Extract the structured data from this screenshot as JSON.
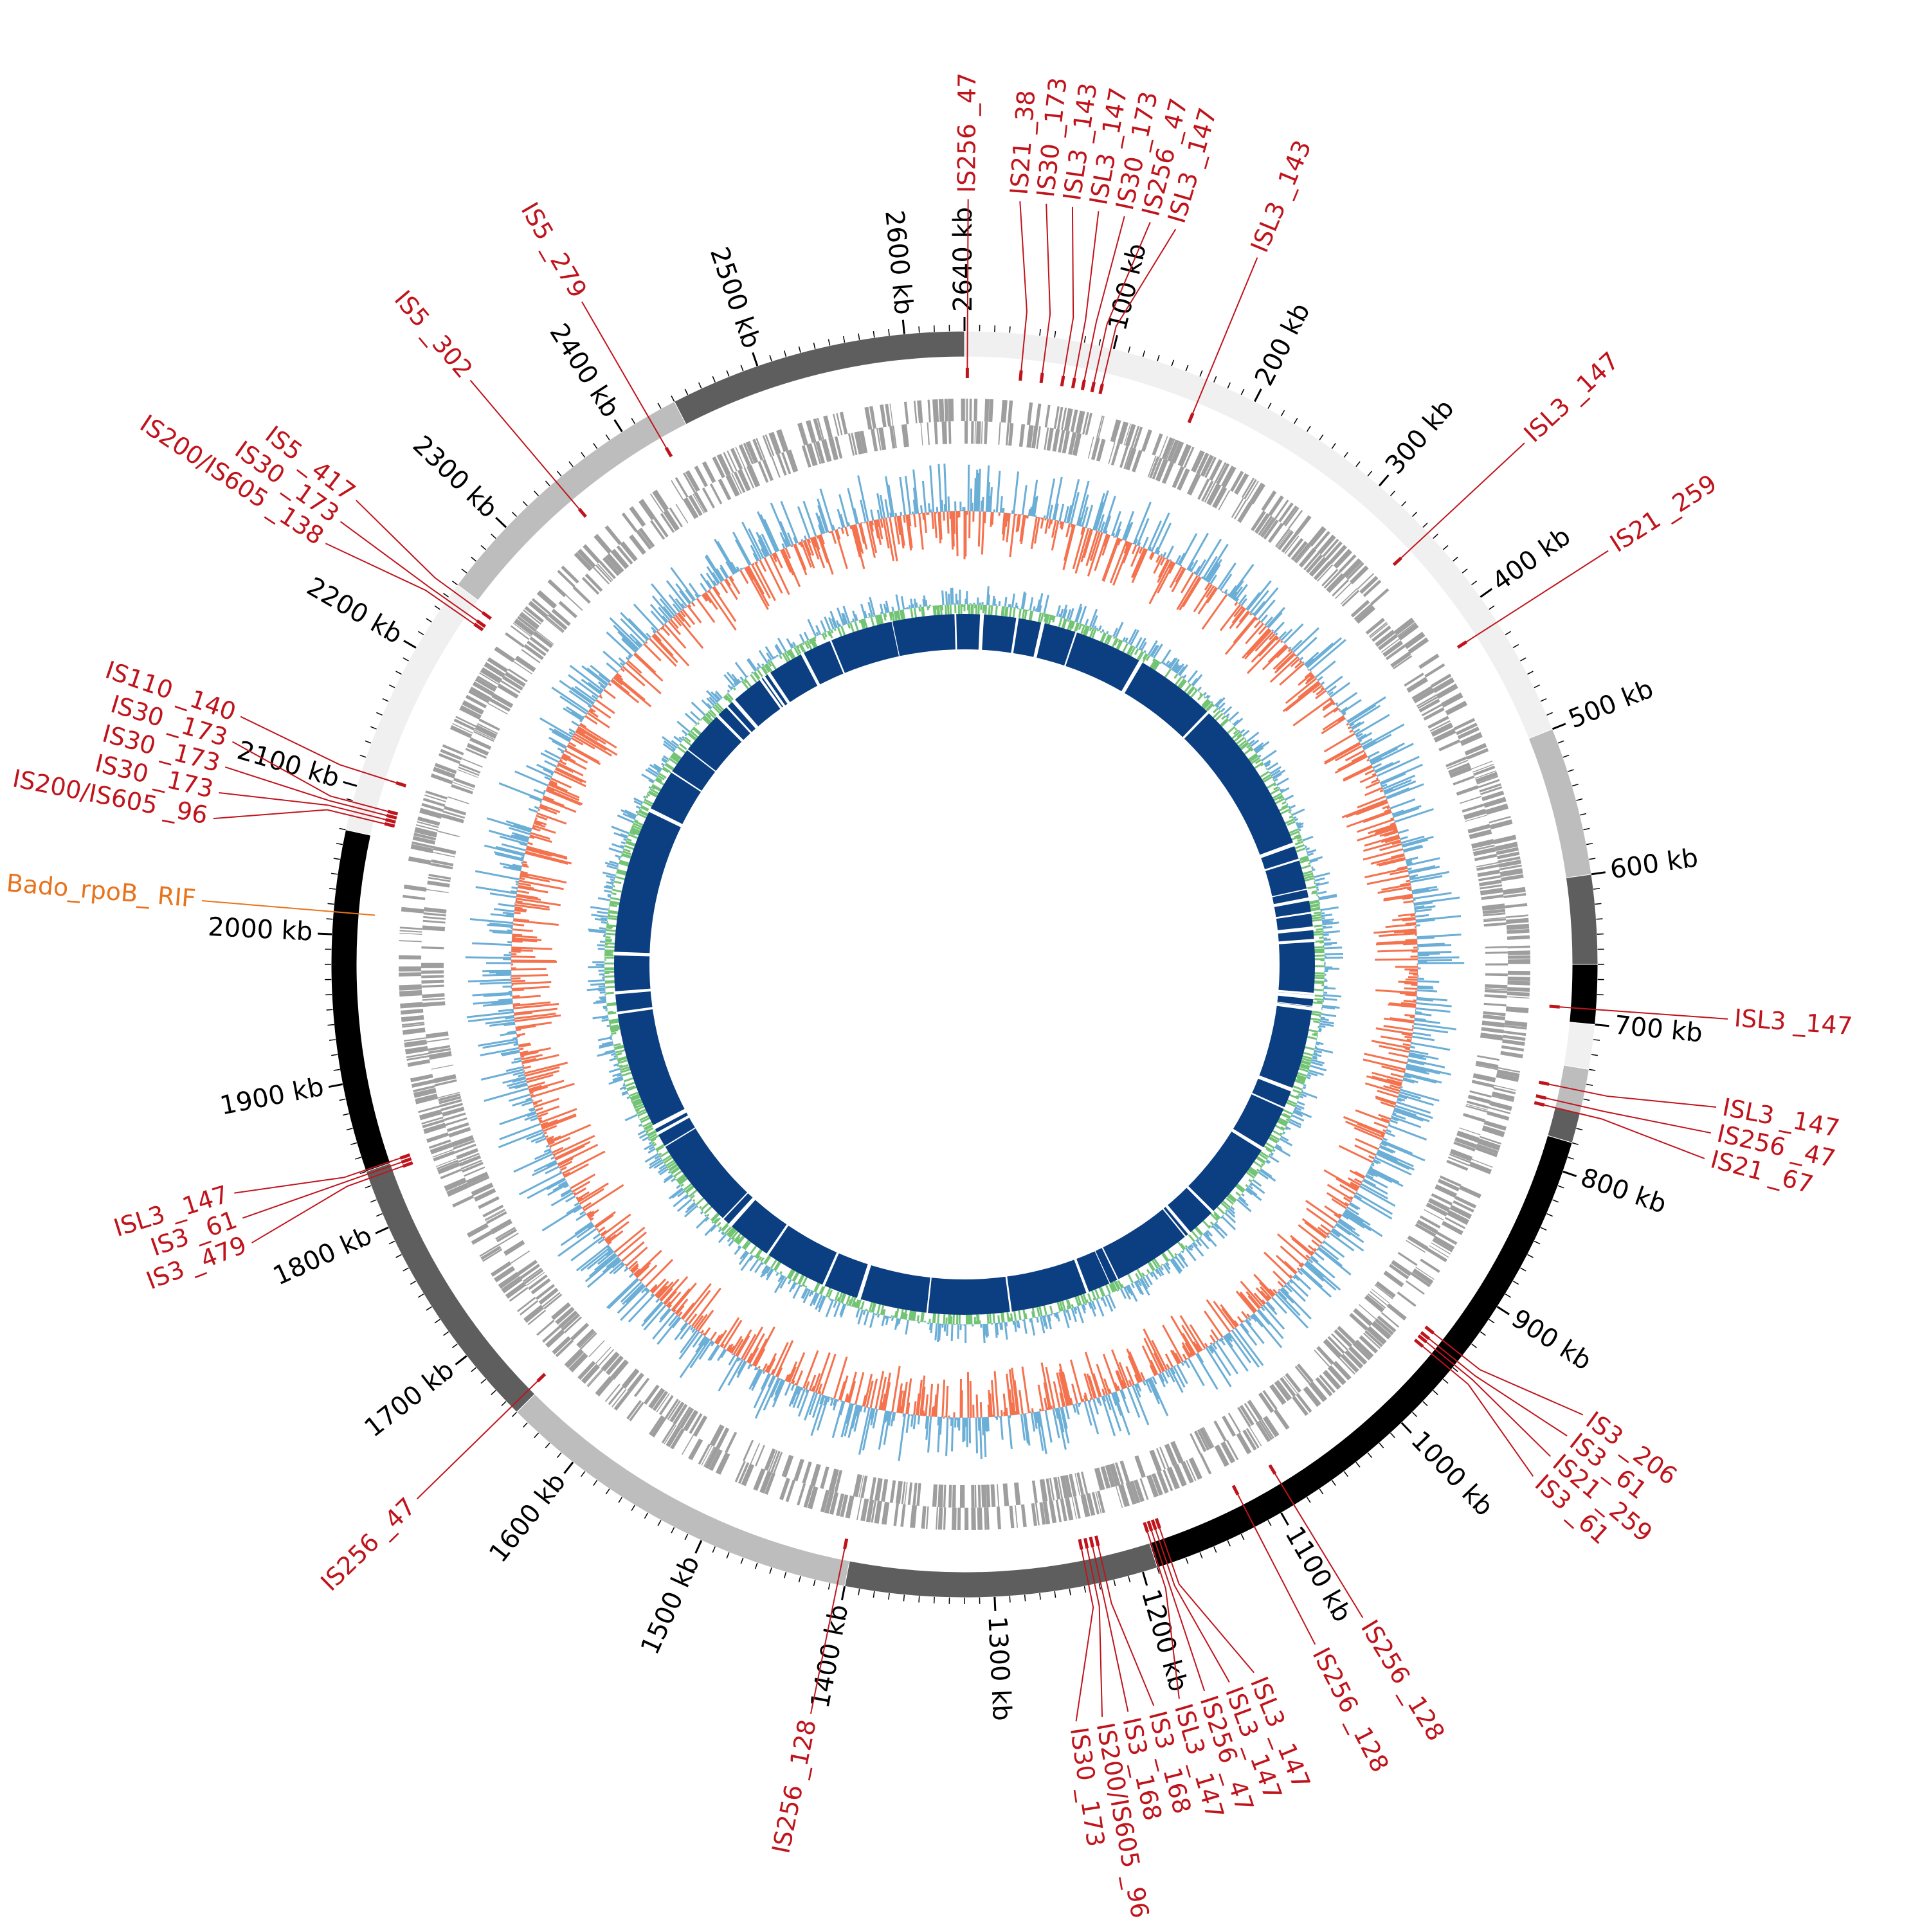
{
  "genome": {
    "length_kb": 2640,
    "tick_step_kb": 100,
    "minor_tick_step_kb": 10,
    "tick_unit": "kb"
  },
  "colors": {
    "is_element": "#c0141c",
    "marker": "#e8731c",
    "gc_content_pos": "#6baed6",
    "gc_content_neg": "#f4724e",
    "gc_skew": "#74c476",
    "coverage_track": "#0b3f82",
    "cds_track": "#9e9e9e",
    "tick": "#000000"
  },
  "segments": [
    {
      "start": 0,
      "end": 500,
      "shade": "#f0f0f0"
    },
    {
      "start": 500,
      "end": 600,
      "shade": "#bdbdbd"
    },
    {
      "start": 600,
      "end": 660,
      "shade": "#5e5e5e"
    },
    {
      "start": 660,
      "end": 700,
      "shade": "#000000"
    },
    {
      "start": 700,
      "end": 730,
      "shade": "#f0f0f0"
    },
    {
      "start": 730,
      "end": 760,
      "shade": "#bdbdbd"
    },
    {
      "start": 760,
      "end": 780,
      "shade": "#5e5e5e"
    },
    {
      "start": 780,
      "end": 1190,
      "shade": "#000000"
    },
    {
      "start": 1190,
      "end": 1400,
      "shade": "#5e5e5e"
    },
    {
      "start": 1400,
      "end": 1650,
      "shade": "#bdbdbd"
    },
    {
      "start": 1650,
      "end": 1840,
      "shade": "#5e5e5e"
    },
    {
      "start": 1840,
      "end": 2070,
      "shade": "#000000"
    },
    {
      "start": 2070,
      "end": 2250,
      "shade": "#f0f0f0"
    },
    {
      "start": 2250,
      "end": 2440,
      "shade": "#bdbdbd"
    },
    {
      "start": 2440,
      "end": 2640,
      "shade": "#5e5e5e"
    }
  ],
  "is_elements": [
    {
      "name": "IS256 _47",
      "pos": 2
    },
    {
      "name": "IS21 _38",
      "pos": 40
    },
    {
      "name": "IS30 _173",
      "pos": 55
    },
    {
      "name": "ISL3 _143",
      "pos": 70
    },
    {
      "name": "ISL3 _147",
      "pos": 78
    },
    {
      "name": "IS30 _173",
      "pos": 85
    },
    {
      "name": "IS256 _47",
      "pos": 92
    },
    {
      "name": "ISL3 _147",
      "pos": 98
    },
    {
      "name": "ISL3 _143",
      "pos": 165
    },
    {
      "name": "ISL3 _147",
      "pos": 345
    },
    {
      "name": "IS21 _259",
      "pos": 420
    },
    {
      "name": "ISL3 _147",
      "pos": 690
    },
    {
      "name": "ISL3 _147",
      "pos": 745
    },
    {
      "name": "IS256 _47",
      "pos": 755
    },
    {
      "name": "IS21 _67",
      "pos": 760
    },
    {
      "name": "IS3 _206",
      "pos": 940
    },
    {
      "name": "IS3 _61",
      "pos": 945
    },
    {
      "name": "IS21 _259",
      "pos": 948
    },
    {
      "name": "IS3 _61",
      "pos": 952
    },
    {
      "name": "IS256 _128",
      "pos": 1090
    },
    {
      "name": "IS256 _128",
      "pos": 1120
    },
    {
      "name": "ISL3 _147",
      "pos": 1180
    },
    {
      "name": "ISL3 _147",
      "pos": 1183
    },
    {
      "name": "IS256 _47",
      "pos": 1186
    },
    {
      "name": "ISL3 _147",
      "pos": 1189
    },
    {
      "name": "IS3 _168",
      "pos": 1225
    },
    {
      "name": "IS3 _168",
      "pos": 1229
    },
    {
      "name": "IS200/IS605 _96",
      "pos": 1233
    },
    {
      "name": "IS30 _173",
      "pos": 1237
    },
    {
      "name": "IS256 _128",
      "pos": 1405
    },
    {
      "name": "IS256 _47",
      "pos": 1655
    },
    {
      "name": "IS3 _479",
      "pos": 1835
    },
    {
      "name": "IS3 _61",
      "pos": 1838
    },
    {
      "name": "ISL3 _147",
      "pos": 1841
    },
    {
      "name": "IS200/IS605 _96",
      "pos": 2080
    },
    {
      "name": "IS30 _173",
      "pos": 2083
    },
    {
      "name": "IS30 _173",
      "pos": 2086
    },
    {
      "name": "IS30 _173",
      "pos": 2089
    },
    {
      "name": "IS110 _140",
      "pos": 2110
    },
    {
      "name": "IS200/IS605 _138",
      "pos": 2235
    },
    {
      "name": "IS30 _173",
      "pos": 2238
    },
    {
      "name": "IS5 _417",
      "pos": 2245
    },
    {
      "name": "IS5 _302",
      "pos": 2345
    },
    {
      "name": "IS5 _279",
      "pos": 2420
    }
  ],
  "markers": [
    {
      "name": "Bado_rpoB_ RIF",
      "pos": 2015
    }
  ]
}
